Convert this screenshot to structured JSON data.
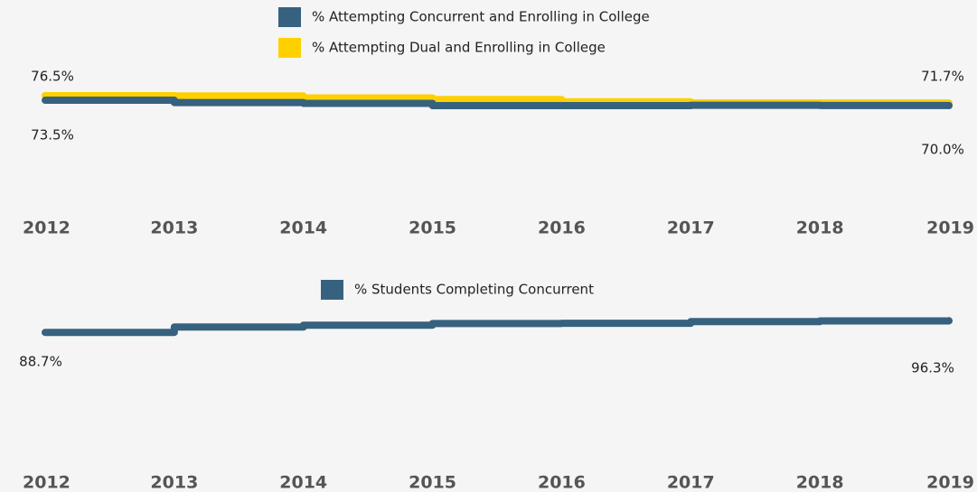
{
  "chart_data": [
    {
      "type": "step-line",
      "x": [
        "2012",
        "2013",
        "2014",
        "2015",
        "2016",
        "2017",
        "2018",
        "2019"
      ],
      "series": [
        {
          "name": "% Attempting Concurrent and Enrolling in College",
          "color": "#36627f",
          "values": [
            73.5,
            72.0,
            71.5,
            70.0,
            70.0,
            70.2,
            70.1,
            70.0
          ],
          "value_labels": [
            "73.5%",
            null,
            null,
            null,
            null,
            null,
            null,
            "70.0%"
          ]
        },
        {
          "name": "% Attempting Dual and Enrolling in College",
          "color": "#ffd000",
          "values": [
            76.5,
            76.3,
            75.0,
            74.0,
            72.5,
            71.8,
            71.7,
            71.7
          ],
          "value_labels": [
            "76.5%",
            null,
            null,
            null,
            null,
            null,
            null,
            "71.7%"
          ]
        }
      ],
      "ylim": [
        60,
        80
      ]
    },
    {
      "type": "step-line",
      "x": [
        "2012",
        "2013",
        "2014",
        "2015",
        "2016",
        "2017",
        "2018",
        "2019"
      ],
      "series": [
        {
          "name": "% Students Completing Concurrent",
          "color": "#36627f",
          "values": [
            88.7,
            92.2,
            93.4,
            94.5,
            94.6,
            95.7,
            96.2,
            96.3
          ],
          "value_labels": [
            "88.7%",
            null,
            null,
            null,
            null,
            null,
            null,
            "96.3%"
          ]
        }
      ],
      "ylim": [
        80,
        100
      ]
    }
  ]
}
